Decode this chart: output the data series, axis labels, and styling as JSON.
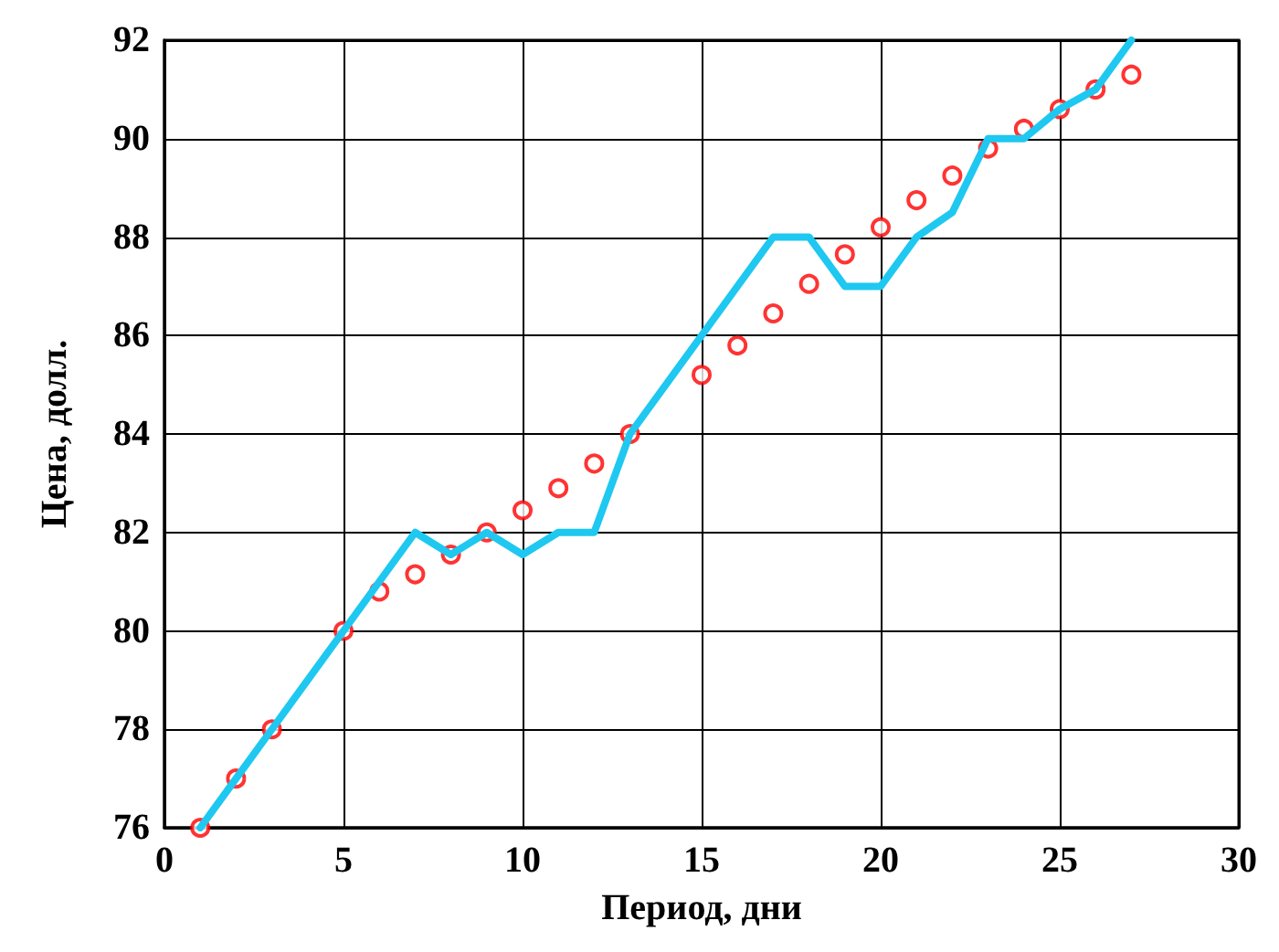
{
  "chart_data": {
    "type": "line",
    "xlabel": "Период, дни",
    "ylabel": "Цена, долл.",
    "xlim": [
      0,
      30
    ],
    "xticks": [
      0,
      5,
      10,
      15,
      20,
      25,
      30
    ],
    "ylim": [
      76,
      92
    ],
    "yticks": [
      76,
      78,
      80,
      82,
      84,
      86,
      88,
      90,
      92
    ],
    "grid": true,
    "series": [
      {
        "color": "#1ec8f0",
        "marker": "none",
        "line_style": "solid",
        "x": [
          1,
          3,
          5,
          7,
          8,
          9,
          10,
          11,
          12,
          13,
          15,
          17,
          18,
          19,
          20,
          21,
          22,
          23,
          24,
          25,
          26,
          27
        ],
        "values": [
          76,
          78,
          80,
          82,
          81.55,
          82,
          81.55,
          82,
          82,
          84,
          86,
          88,
          88,
          87,
          87,
          88,
          88.5,
          90,
          90,
          90.6,
          91,
          92
        ]
      },
      {
        "type": "scatter",
        "color": "#ff0000",
        "marker": "circle",
        "x": [
          1,
          2,
          3,
          5,
          6,
          7,
          8,
          9,
          10,
          11,
          12,
          13,
          15,
          16,
          17,
          18,
          19,
          20,
          21,
          22,
          23,
          24,
          25,
          26,
          27
        ],
        "values": [
          76,
          77,
          78,
          80,
          80.8,
          81.15,
          81.55,
          82,
          82.45,
          82.9,
          83.4,
          84,
          85.2,
          85.8,
          86.45,
          87.05,
          87.65,
          88.2,
          88.75,
          89.25,
          89.8,
          90.2,
          90.6,
          91,
          91.3
        ]
      }
    ]
  }
}
